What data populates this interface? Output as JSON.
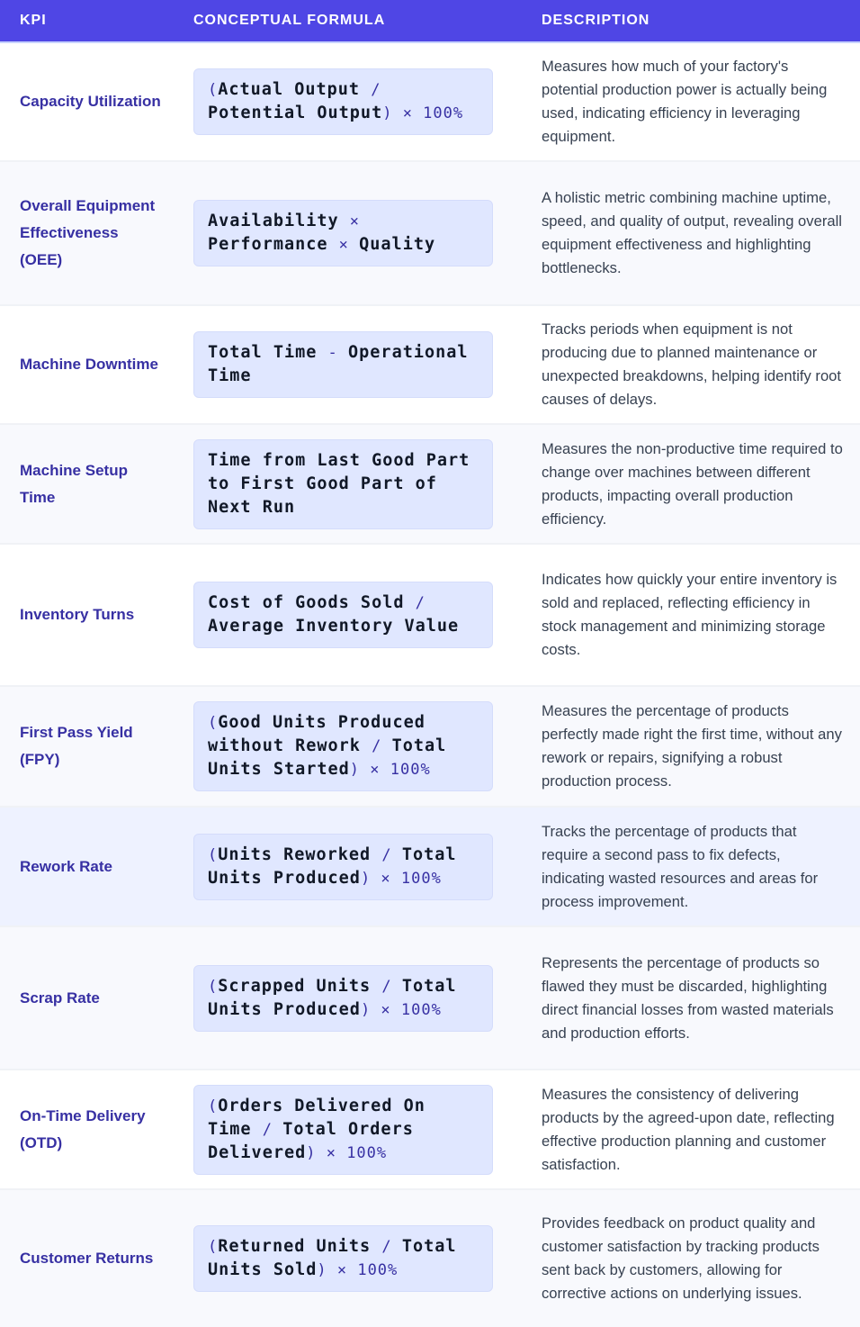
{
  "colors": {
    "header_bg": "#4f46e5",
    "kpi_text": "#3730a3",
    "formula_bg": "#e0e7ff",
    "hover_row_bg": "#eef2ff"
  },
  "headers": {
    "kpi": "KPI",
    "formula": "CONCEPTUAL FORMULA",
    "description": "DESCRIPTION"
  },
  "hovered_row": 6,
  "rows": [
    {
      "kpi": "Capacity Utilization",
      "formula": [
        [
          "(",
          "o"
        ],
        [
          "Actual Output ",
          "v"
        ],
        [
          "/ ",
          "o"
        ],
        [
          "Potential Output",
          "v"
        ],
        [
          ") × 100%",
          "o"
        ]
      ],
      "description": "Measures how much of your factory's potential production power is actually being used, indicating efficiency in leveraging equipment."
    },
    {
      "kpi": "Overall Equipment Effectiveness (OEE)",
      "formula": [
        [
          "Availability ",
          "v"
        ],
        [
          "× ",
          "o"
        ],
        [
          "Performance ",
          "v"
        ],
        [
          "× ",
          "o"
        ],
        [
          "Quality",
          "v"
        ]
      ],
      "description": "A holistic metric combining machine uptime, speed, and quality of output, revealing overall equipment effectiveness and highlighting bottlenecks."
    },
    {
      "kpi": "Machine Downtime",
      "formula": [
        [
          "Total Time ",
          "v"
        ],
        [
          "- ",
          "o"
        ],
        [
          "Operational Time",
          "v"
        ]
      ],
      "description": "Tracks periods when equipment is not producing due to planned maintenance or unexpected breakdowns, helping identify root causes of delays."
    },
    {
      "kpi": "Machine Setup Time",
      "formula": [
        [
          "Time from Last Good Part to First Good Part of Next Run",
          "v"
        ]
      ],
      "description": "Measures the non-productive time required to change over machines between different products, impacting overall production efficiency."
    },
    {
      "kpi": "Inventory Turns",
      "formula": [
        [
          "Cost of Goods Sold ",
          "v"
        ],
        [
          "/ ",
          "o"
        ],
        [
          "Average Inventory Value",
          "v"
        ]
      ],
      "description": "Indicates how quickly your entire inventory is sold and replaced, reflecting efficiency in stock management and minimizing storage costs."
    },
    {
      "kpi": "First Pass Yield (FPY)",
      "formula": [
        [
          "(",
          "o"
        ],
        [
          "Good Units Produced without Rework ",
          "v"
        ],
        [
          "/ ",
          "o"
        ],
        [
          "Total Units Started",
          "v"
        ],
        [
          ") × 100%",
          "o"
        ]
      ],
      "description": "Measures the percentage of products perfectly made right the first time, without any rework or repairs, signifying a robust production process."
    },
    {
      "kpi": "Rework Rate",
      "formula": [
        [
          "(",
          "o"
        ],
        [
          "Units Reworked ",
          "v"
        ],
        [
          "/ ",
          "o"
        ],
        [
          "Total Units Produced",
          "v"
        ],
        [
          ") × 100%",
          "o"
        ]
      ],
      "description": "Tracks the percentage of products that require a second pass to fix defects, indicating wasted resources and areas for process improvement."
    },
    {
      "kpi": "Scrap Rate",
      "formula": [
        [
          "(",
          "o"
        ],
        [
          "Scrapped Units ",
          "v"
        ],
        [
          "/ ",
          "o"
        ],
        [
          "Total Units Produced",
          "v"
        ],
        [
          ") × 100%",
          "o"
        ]
      ],
      "description": "Represents the percentage of products so flawed they must be discarded, highlighting direct financial losses from wasted materials and production efforts."
    },
    {
      "kpi": "On-Time Delivery (OTD)",
      "formula": [
        [
          "(",
          "o"
        ],
        [
          "Orders Delivered On Time ",
          "v"
        ],
        [
          "/ ",
          "o"
        ],
        [
          "Total Orders Delivered",
          "v"
        ],
        [
          ") × 100%",
          "o"
        ]
      ],
      "description": "Measures the consistency of delivering products by the agreed-upon date, reflecting effective production planning and customer satisfaction."
    },
    {
      "kpi": "Customer Returns",
      "formula": [
        [
          "(",
          "o"
        ],
        [
          "Returned Units ",
          "v"
        ],
        [
          "/ ",
          "o"
        ],
        [
          "Total Units Sold",
          "v"
        ],
        [
          ") × 100%",
          "o"
        ]
      ],
      "description": "Provides feedback on product quality and customer satisfaction by tracking products sent back by customers, allowing for corrective actions on underlying issues."
    }
  ]
}
